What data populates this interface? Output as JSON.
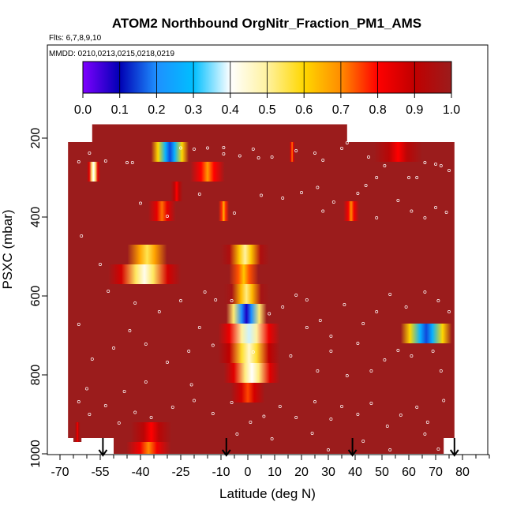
{
  "chart_data": {
    "type": "heatmap",
    "title": "ATOM2 Northbound OrgNitr_Fraction_PM1_AMS",
    "flights_label": "Flts: 6,7,8,9,10",
    "dates_label": "MMDD: 0210,0213,0215,0218,0219",
    "xlabel": "Latitude (deg N)",
    "ylabel": "PSXC (mbar)",
    "xlim": [
      -70,
      90
    ],
    "ylim": [
      1000,
      100
    ],
    "x_ticks": [
      -70,
      -55,
      -40,
      -25,
      -10,
      0,
      10,
      20,
      30,
      40,
      50,
      60,
      70,
      80
    ],
    "x_tick_labels": [
      "-70",
      "-55",
      "-40",
      "-25",
      "-10",
      "0",
      "10",
      "20",
      "30",
      "40",
      "50",
      "60",
      "70",
      "80"
    ],
    "y_ticks": [
      200,
      400,
      600,
      800,
      1000
    ],
    "y_tick_labels": [
      "200",
      "400",
      "600",
      "800",
      "1000"
    ],
    "colorbar": {
      "min": 0.0,
      "max": 1.0,
      "ticks": [
        0.0,
        0.1,
        0.2,
        0.3,
        0.4,
        0.5,
        0.6,
        0.7,
        0.8,
        0.9,
        1.0
      ],
      "tick_labels": [
        "0.0",
        "0.1",
        "0.2",
        "0.3",
        "0.4",
        "0.5",
        "0.6",
        "0.7",
        "0.8",
        "0.9",
        "1.0"
      ],
      "colors": [
        "#7f00ff",
        "#0000b4",
        "#1e90ff",
        "#00bfff",
        "#ffffff",
        "#fff2a0",
        "#ffd700",
        "#ff8c00",
        "#ff0000",
        "#c00000",
        "#9b1c1c"
      ]
    },
    "background_value": 1.0,
    "data_extent": [
      {
        "lat_min": -58,
        "lat_max": 37,
        "p_min": 165,
        "p_max": 210
      },
      {
        "lat_min": -67,
        "lat_max": 77,
        "p_min": 210,
        "p_max": 960
      },
      {
        "lat_min": -50,
        "lat_max": 73,
        "p_min": 960,
        "p_max": 1000
      }
    ],
    "features": [
      {
        "lat_min": -49,
        "lat_max": -26,
        "p_min": 470,
        "p_max": 520,
        "value_min": 0.55
      },
      {
        "lat_min": -52,
        "lat_max": -25,
        "p_min": 520,
        "p_max": 570,
        "value_min": 0.42
      },
      {
        "lat_min": -10,
        "lat_max": 8,
        "p_min": 470,
        "p_max": 520,
        "value_min": 0.5
      },
      {
        "lat_min": -10,
        "lat_max": 7,
        "p_min": 520,
        "p_max": 570,
        "value_min": 0.62
      },
      {
        "lat_min": -9,
        "lat_max": 8,
        "p_min": 570,
        "p_max": 620,
        "value_min": 0.52
      },
      {
        "lat_min": -8,
        "lat_max": 7,
        "p_min": 620,
        "p_max": 670,
        "value_min": 0.08
      },
      {
        "lat_min": -11,
        "lat_max": 12,
        "p_min": 670,
        "p_max": 720,
        "value_min": 0.38
      },
      {
        "lat_min": -11,
        "lat_max": 12,
        "p_min": 720,
        "p_max": 770,
        "value_min": 0.45
      },
      {
        "lat_min": -9,
        "lat_max": 12,
        "p_min": 770,
        "p_max": 820,
        "value_min": 0.4
      },
      {
        "lat_min": -10,
        "lat_max": 10,
        "p_min": 820,
        "p_max": 870,
        "value_min": 0.75
      },
      {
        "lat_min": 57,
        "lat_max": 76,
        "p_min": 670,
        "p_max": 720,
        "value_min": 0.15
      },
      {
        "lat_min": -36,
        "lat_max": -22,
        "p_min": 210,
        "p_max": 260,
        "value_min": 0.15
      },
      {
        "lat_min": -60,
        "lat_max": -55,
        "p_min": 260,
        "p_max": 310,
        "value_min": 0.4
      },
      {
        "lat_min": -25,
        "lat_max": -5,
        "p_min": 260,
        "p_max": 310,
        "value_min": 0.68
      },
      {
        "lat_min": 42,
        "lat_max": 70,
        "p_min": 210,
        "p_max": 260,
        "value_min": 0.8
      },
      {
        "lat_min": -30,
        "lat_max": -23,
        "p_min": 310,
        "p_max": 360,
        "value_min": 0.8
      },
      {
        "lat_min": -40,
        "lat_max": -24,
        "p_min": 360,
        "p_max": 410,
        "value_min": 0.72
      },
      {
        "lat_min": -12,
        "lat_max": -6,
        "p_min": 360,
        "p_max": 410,
        "value_min": 0.65
      },
      {
        "lat_min": 34,
        "lat_max": 43,
        "p_min": 360,
        "p_max": 410,
        "value_min": 0.7
      },
      {
        "lat_min": 15,
        "lat_max": 18,
        "p_min": 210,
        "p_max": 260,
        "value_min": 0.7
      },
      {
        "lat_min": -48,
        "lat_max": -24,
        "p_min": 920,
        "p_max": 970,
        "value_min": 0.8
      },
      {
        "lat_min": -50,
        "lat_max": -24,
        "p_min": 970,
        "p_max": 1000,
        "value_min": 0.7
      },
      {
        "lat_min": -65,
        "lat_max": -62,
        "p_min": 920,
        "p_max": 970,
        "value_min": 0.8
      }
    ],
    "arrows_lat": [
      -54,
      -8,
      39,
      77
    ],
    "points": [
      [
        -63,
        260
      ],
      [
        -59,
        238
      ],
      [
        -53,
        258
      ],
      [
        -45,
        262
      ],
      [
        -43,
        262
      ],
      [
        -25,
        225
      ],
      [
        -20,
        228
      ],
      [
        -15,
        225
      ],
      [
        -9,
        224
      ],
      [
        -9,
        240
      ],
      [
        -3,
        245
      ],
      [
        2,
        228
      ],
      [
        4,
        250
      ],
      [
        9,
        248
      ],
      [
        18,
        232
      ],
      [
        25,
        238
      ],
      [
        28,
        256
      ],
      [
        35,
        226
      ],
      [
        37,
        212
      ],
      [
        45,
        248
      ],
      [
        48,
        300
      ],
      [
        51,
        270
      ],
      [
        60,
        300
      ],
      [
        63,
        300
      ],
      [
        66,
        262
      ],
      [
        70,
        266
      ],
      [
        72,
        270
      ],
      [
        75,
        282
      ],
      [
        -40,
        365
      ],
      [
        -30,
        398
      ],
      [
        -18,
        342
      ],
      [
        -5,
        390
      ],
      [
        5,
        345
      ],
      [
        13,
        352
      ],
      [
        20,
        338
      ],
      [
        26,
        325
      ],
      [
        28,
        385
      ],
      [
        32,
        362
      ],
      [
        41,
        340
      ],
      [
        44,
        320
      ],
      [
        48,
        402
      ],
      [
        56,
        358
      ],
      [
        61,
        385
      ],
      [
        66,
        402
      ],
      [
        70,
        376
      ],
      [
        74,
        388
      ],
      [
        -62,
        448
      ],
      [
        -55,
        520
      ],
      [
        -52,
        588
      ],
      [
        -42,
        618
      ],
      [
        -33,
        640
      ],
      [
        -25,
        612
      ],
      [
        -16,
        590
      ],
      [
        -12,
        610
      ],
      [
        -6,
        612
      ],
      [
        8,
        645
      ],
      [
        13,
        628
      ],
      [
        18,
        598
      ],
      [
        22,
        610
      ],
      [
        27,
        662
      ],
      [
        31,
        702
      ],
      [
        36,
        622
      ],
      [
        43,
        670
      ],
      [
        48,
        640
      ],
      [
        53,
        596
      ],
      [
        59,
        628
      ],
      [
        66,
        590
      ],
      [
        71,
        612
      ],
      [
        75,
        640
      ],
      [
        -63,
        672
      ],
      [
        -58,
        760
      ],
      [
        -50,
        732
      ],
      [
        -44,
        688
      ],
      [
        -38,
        722
      ],
      [
        -30,
        768
      ],
      [
        -22,
        740
      ],
      [
        -18,
        680
      ],
      [
        -13,
        725
      ],
      [
        2,
        742
      ],
      [
        16,
        752
      ],
      [
        22,
        680
      ],
      [
        26,
        790
      ],
      [
        31,
        740
      ],
      [
        37,
        802
      ],
      [
        41,
        720
      ],
      [
        46,
        790
      ],
      [
        51,
        762
      ],
      [
        56,
        738
      ],
      [
        61,
        752
      ],
      [
        69,
        740
      ],
      [
        72,
        790
      ],
      [
        -63,
        868
      ],
      [
        -59,
        900
      ],
      [
        -53,
        878
      ],
      [
        -48,
        922
      ],
      [
        -42,
        895
      ],
      [
        -36,
        908
      ],
      [
        -28,
        882
      ],
      [
        -20,
        865
      ],
      [
        -13,
        898
      ],
      [
        -6,
        870
      ],
      [
        1,
        920
      ],
      [
        6,
        905
      ],
      [
        12,
        880
      ],
      [
        18,
        908
      ],
      [
        25,
        868
      ],
      [
        31,
        912
      ],
      [
        35,
        880
      ],
      [
        41,
        900
      ],
      [
        46,
        872
      ],
      [
        52,
        930
      ],
      [
        57,
        902
      ],
      [
        63,
        882
      ],
      [
        67,
        920
      ],
      [
        73,
        865
      ],
      [
        -60,
        835
      ],
      [
        -46,
        842
      ],
      [
        -38,
        818
      ],
      [
        -21,
        825
      ],
      [
        -4,
        950
      ],
      [
        9,
        962
      ],
      [
        24,
        948
      ],
      [
        30,
        990
      ],
      [
        43,
        968
      ],
      [
        53,
        990
      ],
      [
        66,
        950
      ],
      [
        71,
        988
      ]
    ]
  }
}
